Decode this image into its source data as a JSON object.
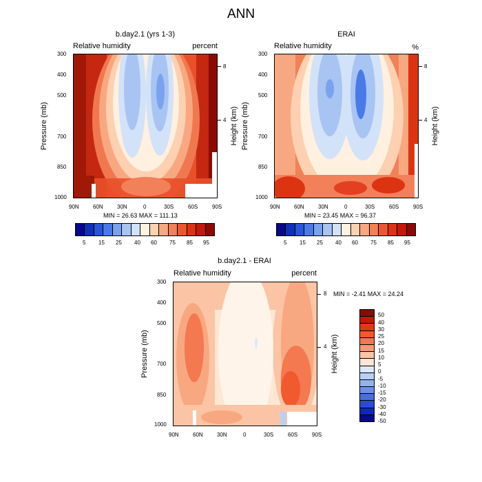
{
  "figure": {
    "title": "ANN"
  },
  "chart_data": [
    {
      "type": "heatmap",
      "title": "b.day2.1 (yrs 1-3)",
      "left_label": "Relative humidity",
      "right_label": "percent",
      "ylabel": "Pressure (mb)",
      "y2label": "Height (km)",
      "x_ticks": [
        "90N",
        "60N",
        "30N",
        "0",
        "30S",
        "60S",
        "90S"
      ],
      "y_ticks": [
        "300",
        "400",
        "500",
        "700",
        "850",
        "1000"
      ],
      "height_ticks": [
        "8",
        "4"
      ],
      "min_label": "MIN =  26.63  MAX = 111.13",
      "colorbar_labels": [
        "5",
        "15",
        "25",
        "40",
        "60",
        "75",
        "85",
        "95"
      ]
    },
    {
      "type": "heatmap",
      "title": "ERAI",
      "left_label": "Relative humidity",
      "right_label": "%",
      "ylabel": "Pressure (mb)",
      "y2label": "Height (km)",
      "x_ticks": [
        "90N",
        "60N",
        "30N",
        "0",
        "30S",
        "60S",
        "90S"
      ],
      "y_ticks": [
        "300",
        "400",
        "500",
        "700",
        "850",
        "1000"
      ],
      "height_ticks": [
        "8",
        "4"
      ],
      "min_label": "MIN =  23.45  MAX =  96.37",
      "colorbar_labels": [
        "5",
        "15",
        "25",
        "40",
        "60",
        "75",
        "85",
        "95"
      ]
    },
    {
      "type": "heatmap",
      "title": "b.day2.1 - ERAI",
      "left_label": "Relative humidity",
      "right_label": "percent",
      "ylabel": "Pressure (mb)",
      "y2label": "Height (km)",
      "x_ticks": [
        "90N",
        "60N",
        "30N",
        "0",
        "30S",
        "60S",
        "90S"
      ],
      "y_ticks": [
        "300",
        "400",
        "500",
        "700",
        "850",
        "1000"
      ],
      "height_ticks": [
        "8",
        "4"
      ],
      "min_label": "MIN =  -2.41  MAX =  24.24",
      "colorbar_labels": [
        "50",
        "40",
        "30",
        "25",
        "20",
        "15",
        "10",
        "5",
        "0",
        "-5",
        "-10",
        "-15",
        "-20",
        "-30",
        "-40",
        "-50"
      ]
    }
  ],
  "colors": {
    "abs_scale": [
      "#08088a",
      "#1030b8",
      "#2a55d8",
      "#4a7ae8",
      "#7aa2ee",
      "#a8c4f2",
      "#d2e2f8",
      "#fff2e0",
      "#fcd2b0",
      "#f8a880",
      "#f28058",
      "#ea5830",
      "#dc3412",
      "#c01a08",
      "#8c0a04"
    ],
    "diff_scale": [
      "#8c0a04",
      "#c01a08",
      "#e03a14",
      "#f05a2e",
      "#f47850",
      "#f89a78",
      "#fbc4a4",
      "#fde6d4",
      "#dce8fa",
      "#b8d0f4",
      "#94b2ee",
      "#6e90e6",
      "#4a6ee0",
      "#2a4cd4",
      "#1028b8",
      "#080888"
    ]
  }
}
